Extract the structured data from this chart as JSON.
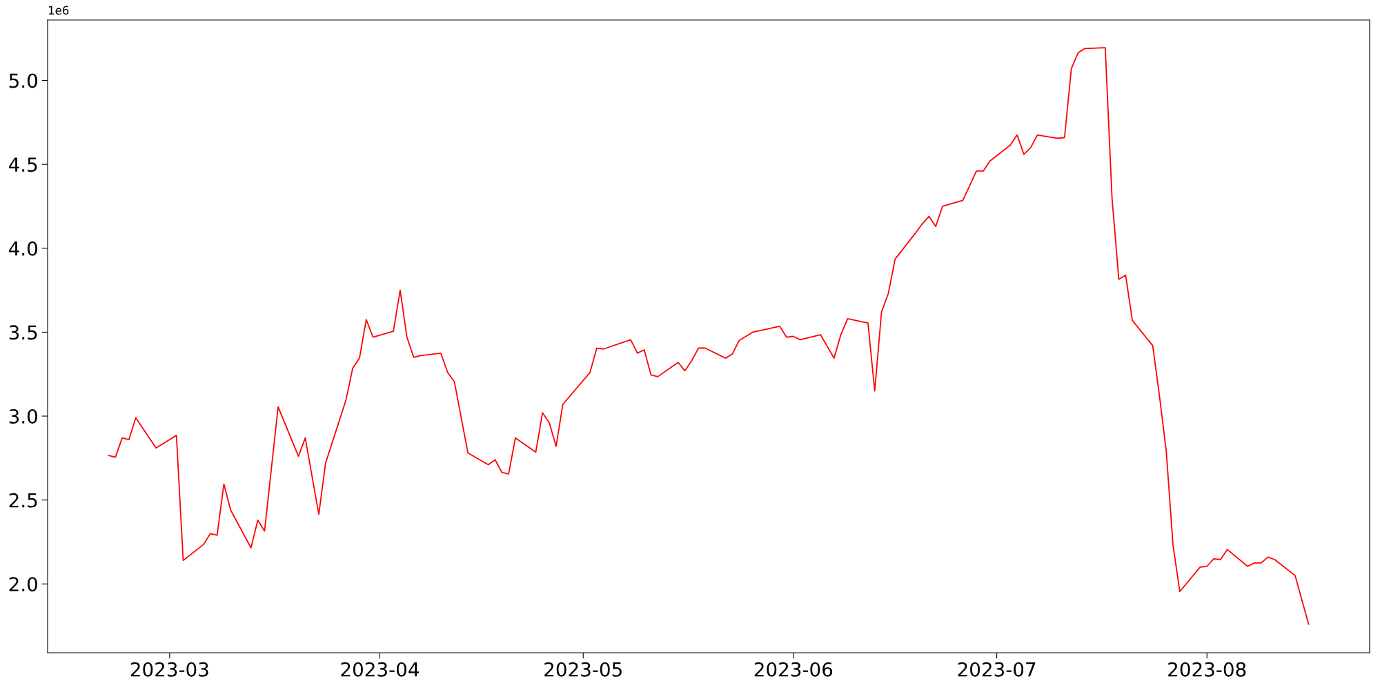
{
  "chart_data": {
    "type": "line",
    "x": [
      "2023-02-20",
      "2023-02-21",
      "2023-02-22",
      "2023-02-23",
      "2023-02-24",
      "2023-02-27",
      "2023-03-02",
      "2023-03-03",
      "2023-03-06",
      "2023-03-07",
      "2023-03-08",
      "2023-03-09",
      "2023-03-10",
      "2023-03-13",
      "2023-03-14",
      "2023-03-15",
      "2023-03-17",
      "2023-03-20",
      "2023-03-21",
      "2023-03-23",
      "2023-03-24",
      "2023-03-27",
      "2023-03-28",
      "2023-03-29",
      "2023-03-30",
      "2023-03-31",
      "2023-04-03",
      "2023-04-04",
      "2023-04-05",
      "2023-04-06",
      "2023-04-07",
      "2023-04-10",
      "2023-04-11",
      "2023-04-12",
      "2023-04-14",
      "2023-04-17",
      "2023-04-18",
      "2023-04-19",
      "2023-04-20",
      "2023-04-21",
      "2023-04-24",
      "2023-04-25",
      "2023-04-26",
      "2023-04-27",
      "2023-04-28",
      "2023-05-02",
      "2023-05-03",
      "2023-05-04",
      "2023-05-08",
      "2023-05-09",
      "2023-05-10",
      "2023-05-11",
      "2023-05-12",
      "2023-05-15",
      "2023-05-16",
      "2023-05-17",
      "2023-05-18",
      "2023-05-19",
      "2023-05-22",
      "2023-05-23",
      "2023-05-24",
      "2023-05-26",
      "2023-05-30",
      "2023-05-31",
      "2023-06-01",
      "2023-06-02",
      "2023-06-05",
      "2023-06-07",
      "2023-06-08",
      "2023-06-09",
      "2023-06-12",
      "2023-06-13",
      "2023-06-14",
      "2023-06-15",
      "2023-06-16",
      "2023-06-19",
      "2023-06-20",
      "2023-06-21",
      "2023-06-22",
      "2023-06-23",
      "2023-06-26",
      "2023-06-28",
      "2023-06-29",
      "2023-06-30",
      "2023-07-03",
      "2023-07-04",
      "2023-07-05",
      "2023-07-06",
      "2023-07-07",
      "2023-07-10",
      "2023-07-11",
      "2023-07-12",
      "2023-07-13",
      "2023-07-14",
      "2023-07-17",
      "2023-07-18",
      "2023-07-19",
      "2023-07-20",
      "2023-07-21",
      "2023-07-24",
      "2023-07-25",
      "2023-07-26",
      "2023-07-27",
      "2023-07-28",
      "2023-07-31",
      "2023-08-01",
      "2023-08-02",
      "2023-08-03",
      "2023-08-04",
      "2023-08-07",
      "2023-08-08",
      "2023-08-09",
      "2023-08-10",
      "2023-08-11",
      "2023-08-14",
      "2023-08-16"
    ],
    "series": [
      {
        "color": "#ff0000",
        "values": [
          2.765,
          2.755,
          2.87,
          2.86,
          2.99,
          2.81,
          2.885,
          2.14,
          2.235,
          2.3,
          2.29,
          2.595,
          2.44,
          2.215,
          2.38,
          2.315,
          3.055,
          2.76,
          2.87,
          2.415,
          2.72,
          3.095,
          3.285,
          3.345,
          3.575,
          3.47,
          3.505,
          3.75,
          3.47,
          3.35,
          3.36,
          3.375,
          3.26,
          3.205,
          2.78,
          2.71,
          2.74,
          2.665,
          2.655,
          2.87,
          2.785,
          3.02,
          2.96,
          2.82,
          3.07,
          3.26,
          3.405,
          3.4,
          3.455,
          3.375,
          3.395,
          3.245,
          3.235,
          3.32,
          3.27,
          3.33,
          3.405,
          3.405,
          3.345,
          3.37,
          3.45,
          3.5,
          3.535,
          3.47,
          3.475,
          3.455,
          3.485,
          3.345,
          3.485,
          3.58,
          3.555,
          3.15,
          3.62,
          3.73,
          3.935,
          4.09,
          4.145,
          4.19,
          4.13,
          4.25,
          4.285,
          4.46,
          4.46,
          4.52,
          4.615,
          4.675,
          4.56,
          4.6,
          4.675,
          4.655,
          4.66,
          5.07,
          5.165,
          5.19,
          5.195,
          4.3,
          3.815,
          3.84,
          3.57,
          3.42,
          3.12,
          2.79,
          2.23,
          1.955,
          2.1,
          2.105,
          2.15,
          2.145,
          2.205,
          2.105,
          2.125,
          2.125,
          2.16,
          2.145,
          2.05,
          1.76
        ]
      }
    ],
    "xlim": [
      "2023-02-11",
      "2023-08-25"
    ],
    "xticks": [
      {
        "value": "2023-03-01",
        "label": "2023-03"
      },
      {
        "value": "2023-04-01",
        "label": "2023-04"
      },
      {
        "value": "2023-05-01",
        "label": "2023-05"
      },
      {
        "value": "2023-06-01",
        "label": "2023-06"
      },
      {
        "value": "2023-07-01",
        "label": "2023-07"
      },
      {
        "value": "2023-08-01",
        "label": "2023-08"
      }
    ],
    "ylim": [
      1.59,
      5.36
    ],
    "yticks": [
      {
        "value": 2,
        "label": "2.0"
      },
      2.5,
      {
        "value": 3,
        "label": "3.0"
      },
      3.5,
      {
        "value": 4,
        "label": "4.0"
      },
      4.5,
      {
        "value": 5,
        "label": "5.0"
      }
    ],
    "annotations": [
      "1e6"
    ],
    "grid": false,
    "marker": "none",
    "line_style": "solid"
  }
}
